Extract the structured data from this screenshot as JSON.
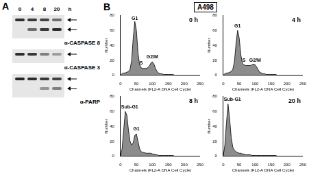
{
  "panel_a": {
    "label": "A",
    "lanes": [
      "0",
      "4",
      "8",
      "20"
    ],
    "unit": "h",
    "blots": [
      {
        "label": "α-CASPASE 8",
        "bands": [
          [
            0.9,
            0.85,
            0.8,
            0.6
          ],
          [
            0,
            0.6,
            0.85,
            0.9
          ]
        ]
      },
      {
        "label": "α-CASPASE 3",
        "bands": [
          [
            0.9,
            0.85,
            0.5,
            0.35
          ]
        ]
      },
      {
        "label": "α-PARP",
        "bands": [
          [
            0.95,
            0.9,
            0.85,
            0.8
          ],
          [
            0,
            0,
            0.4,
            0.5
          ]
        ]
      }
    ]
  },
  "panel_b": {
    "label": "B",
    "cell_line": "A498"
  },
  "chart_data": [
    {
      "type": "line",
      "title": "0 h",
      "x_label": "Channels (FL2-A DNA Cell Cycle)",
      "y_label": "Number",
      "x": [
        0,
        5,
        10,
        15,
        20,
        25,
        30,
        35,
        40,
        45,
        50,
        55,
        60,
        65,
        70,
        75,
        80,
        85,
        90,
        95,
        100,
        105,
        110,
        115,
        120,
        125,
        130,
        135,
        140,
        145,
        150,
        155,
        160,
        165,
        170,
        175,
        180,
        185,
        190,
        195,
        200,
        205,
        210,
        215,
        220,
        225,
        230,
        235,
        240,
        245,
        250
      ],
      "values": [
        0,
        2,
        3,
        3,
        4,
        5,
        8,
        20,
        50,
        72,
        60,
        30,
        14,
        10,
        9,
        9,
        9,
        10,
        12,
        16,
        18,
        15,
        9,
        5,
        3,
        2,
        2,
        1,
        1,
        1,
        1,
        1,
        1,
        1,
        0,
        0,
        0,
        0,
        0,
        0,
        0,
        0,
        0,
        0,
        0,
        0,
        0,
        0,
        0,
        0,
        0
      ],
      "xlim": [
        0,
        250
      ],
      "xticks": [
        0,
        50,
        100,
        150,
        200,
        250
      ],
      "ylim": [
        0,
        80
      ],
      "yticks": [
        0,
        20,
        40,
        60,
        80
      ],
      "grid": false,
      "color": "#8c8c8c",
      "annotations": [
        {
          "text": "G1",
          "x": 45
        },
        {
          "text": "S",
          "x": 65
        },
        {
          "text": "G2/M",
          "x": 100
        }
      ]
    },
    {
      "type": "line",
      "title": "4 h",
      "x_label": "Channels (FL2-A DNA Cell Cycle)",
      "y_label": "Number",
      "x": [
        0,
        5,
        10,
        15,
        20,
        25,
        30,
        35,
        40,
        45,
        50,
        55,
        60,
        65,
        70,
        75,
        80,
        85,
        90,
        95,
        100,
        105,
        110,
        115,
        120,
        125,
        130,
        135,
        140,
        145,
        150,
        155,
        160,
        165,
        170,
        175,
        180,
        185,
        190,
        195,
        200,
        205,
        210,
        215,
        220,
        225,
        230,
        235,
        240,
        245,
        250
      ],
      "values": [
        0,
        2,
        3,
        3,
        4,
        5,
        8,
        18,
        42,
        60,
        50,
        28,
        16,
        14,
        13,
        13,
        13,
        13,
        14,
        15,
        14,
        11,
        7,
        4,
        3,
        2,
        2,
        1,
        1,
        1,
        1,
        1,
        1,
        1,
        0,
        0,
        0,
        0,
        0,
        0,
        0,
        0,
        0,
        0,
        0,
        0,
        0,
        0,
        0,
        0,
        0
      ],
      "xlim": [
        0,
        250
      ],
      "xticks": [
        0,
        50,
        100,
        150,
        200,
        250
      ],
      "ylim": [
        0,
        80
      ],
      "yticks": [
        0,
        20,
        40,
        60,
        80
      ],
      "grid": false,
      "color": "#8c8c8c",
      "annotations": [
        {
          "text": "G1",
          "x": 45
        },
        {
          "text": "S",
          "x": 65
        },
        {
          "text": "G2/M",
          "x": 100
        }
      ]
    },
    {
      "type": "line",
      "title": "8 h",
      "x_label": "Channels (FL2-A DNA Cell Cycle)",
      "y_label": "Number",
      "x": [
        0,
        5,
        10,
        15,
        20,
        25,
        30,
        35,
        40,
        45,
        50,
        55,
        60,
        65,
        70,
        75,
        80,
        85,
        90,
        95,
        100,
        105,
        110,
        115,
        120,
        125,
        130,
        135,
        140,
        145,
        150,
        155,
        160,
        165,
        170,
        175,
        180,
        185,
        190,
        195,
        200,
        205,
        210,
        215,
        220,
        225,
        230,
        235,
        240,
        245,
        250
      ],
      "values": [
        0,
        10,
        35,
        60,
        55,
        35,
        20,
        15,
        18,
        28,
        30,
        20,
        10,
        6,
        5,
        5,
        4,
        4,
        4,
        4,
        3,
        3,
        2,
        2,
        1,
        1,
        1,
        1,
        1,
        1,
        1,
        1,
        1,
        1,
        0,
        0,
        0,
        0,
        0,
        0,
        0,
        0,
        0,
        0,
        0,
        0,
        0,
        0,
        0,
        0,
        0
      ],
      "xlim": [
        0,
        250
      ],
      "xticks": [
        0,
        50,
        100,
        150,
        200,
        250
      ],
      "ylim": [
        0,
        80
      ],
      "yticks": [
        0,
        20,
        40,
        60,
        80
      ],
      "grid": false,
      "color": "#8c8c8c",
      "annotations": [
        {
          "text": "Sub-G1",
          "x": 15
        },
        {
          "text": "G1",
          "x": 50
        }
      ]
    },
    {
      "type": "line",
      "title": "20 h",
      "x_label": "Channels (FL2-A DNA Cell Cycle)",
      "y_label": "Number",
      "x": [
        0,
        5,
        10,
        15,
        20,
        25,
        30,
        35,
        40,
        45,
        50,
        55,
        60,
        65,
        70,
        75,
        80,
        85,
        90,
        95,
        100,
        105,
        110,
        115,
        120,
        125,
        130,
        135,
        140,
        145,
        150,
        155,
        160,
        165,
        170,
        175,
        180,
        185,
        190,
        195,
        200,
        205,
        210,
        215,
        220,
        225,
        230,
        235,
        240,
        245,
        250
      ],
      "values": [
        0,
        15,
        45,
        70,
        50,
        25,
        12,
        8,
        6,
        5,
        4,
        4,
        3,
        3,
        2,
        2,
        2,
        2,
        1,
        1,
        1,
        1,
        1,
        1,
        1,
        1,
        1,
        1,
        1,
        1,
        1,
        1,
        1,
        1,
        0,
        0,
        0,
        0,
        0,
        0,
        0,
        0,
        0,
        0,
        0,
        0,
        0,
        0,
        0,
        0,
        0
      ],
      "xlim": [
        0,
        250
      ],
      "xticks": [
        0,
        50,
        100,
        150,
        200,
        250
      ],
      "ylim": [
        0,
        80
      ],
      "yticks": [
        0,
        20,
        40,
        60,
        80
      ],
      "grid": false,
      "color": "#8c8c8c",
      "annotations": [
        {
          "text": "Sub-G1",
          "x": 15
        }
      ]
    }
  ]
}
